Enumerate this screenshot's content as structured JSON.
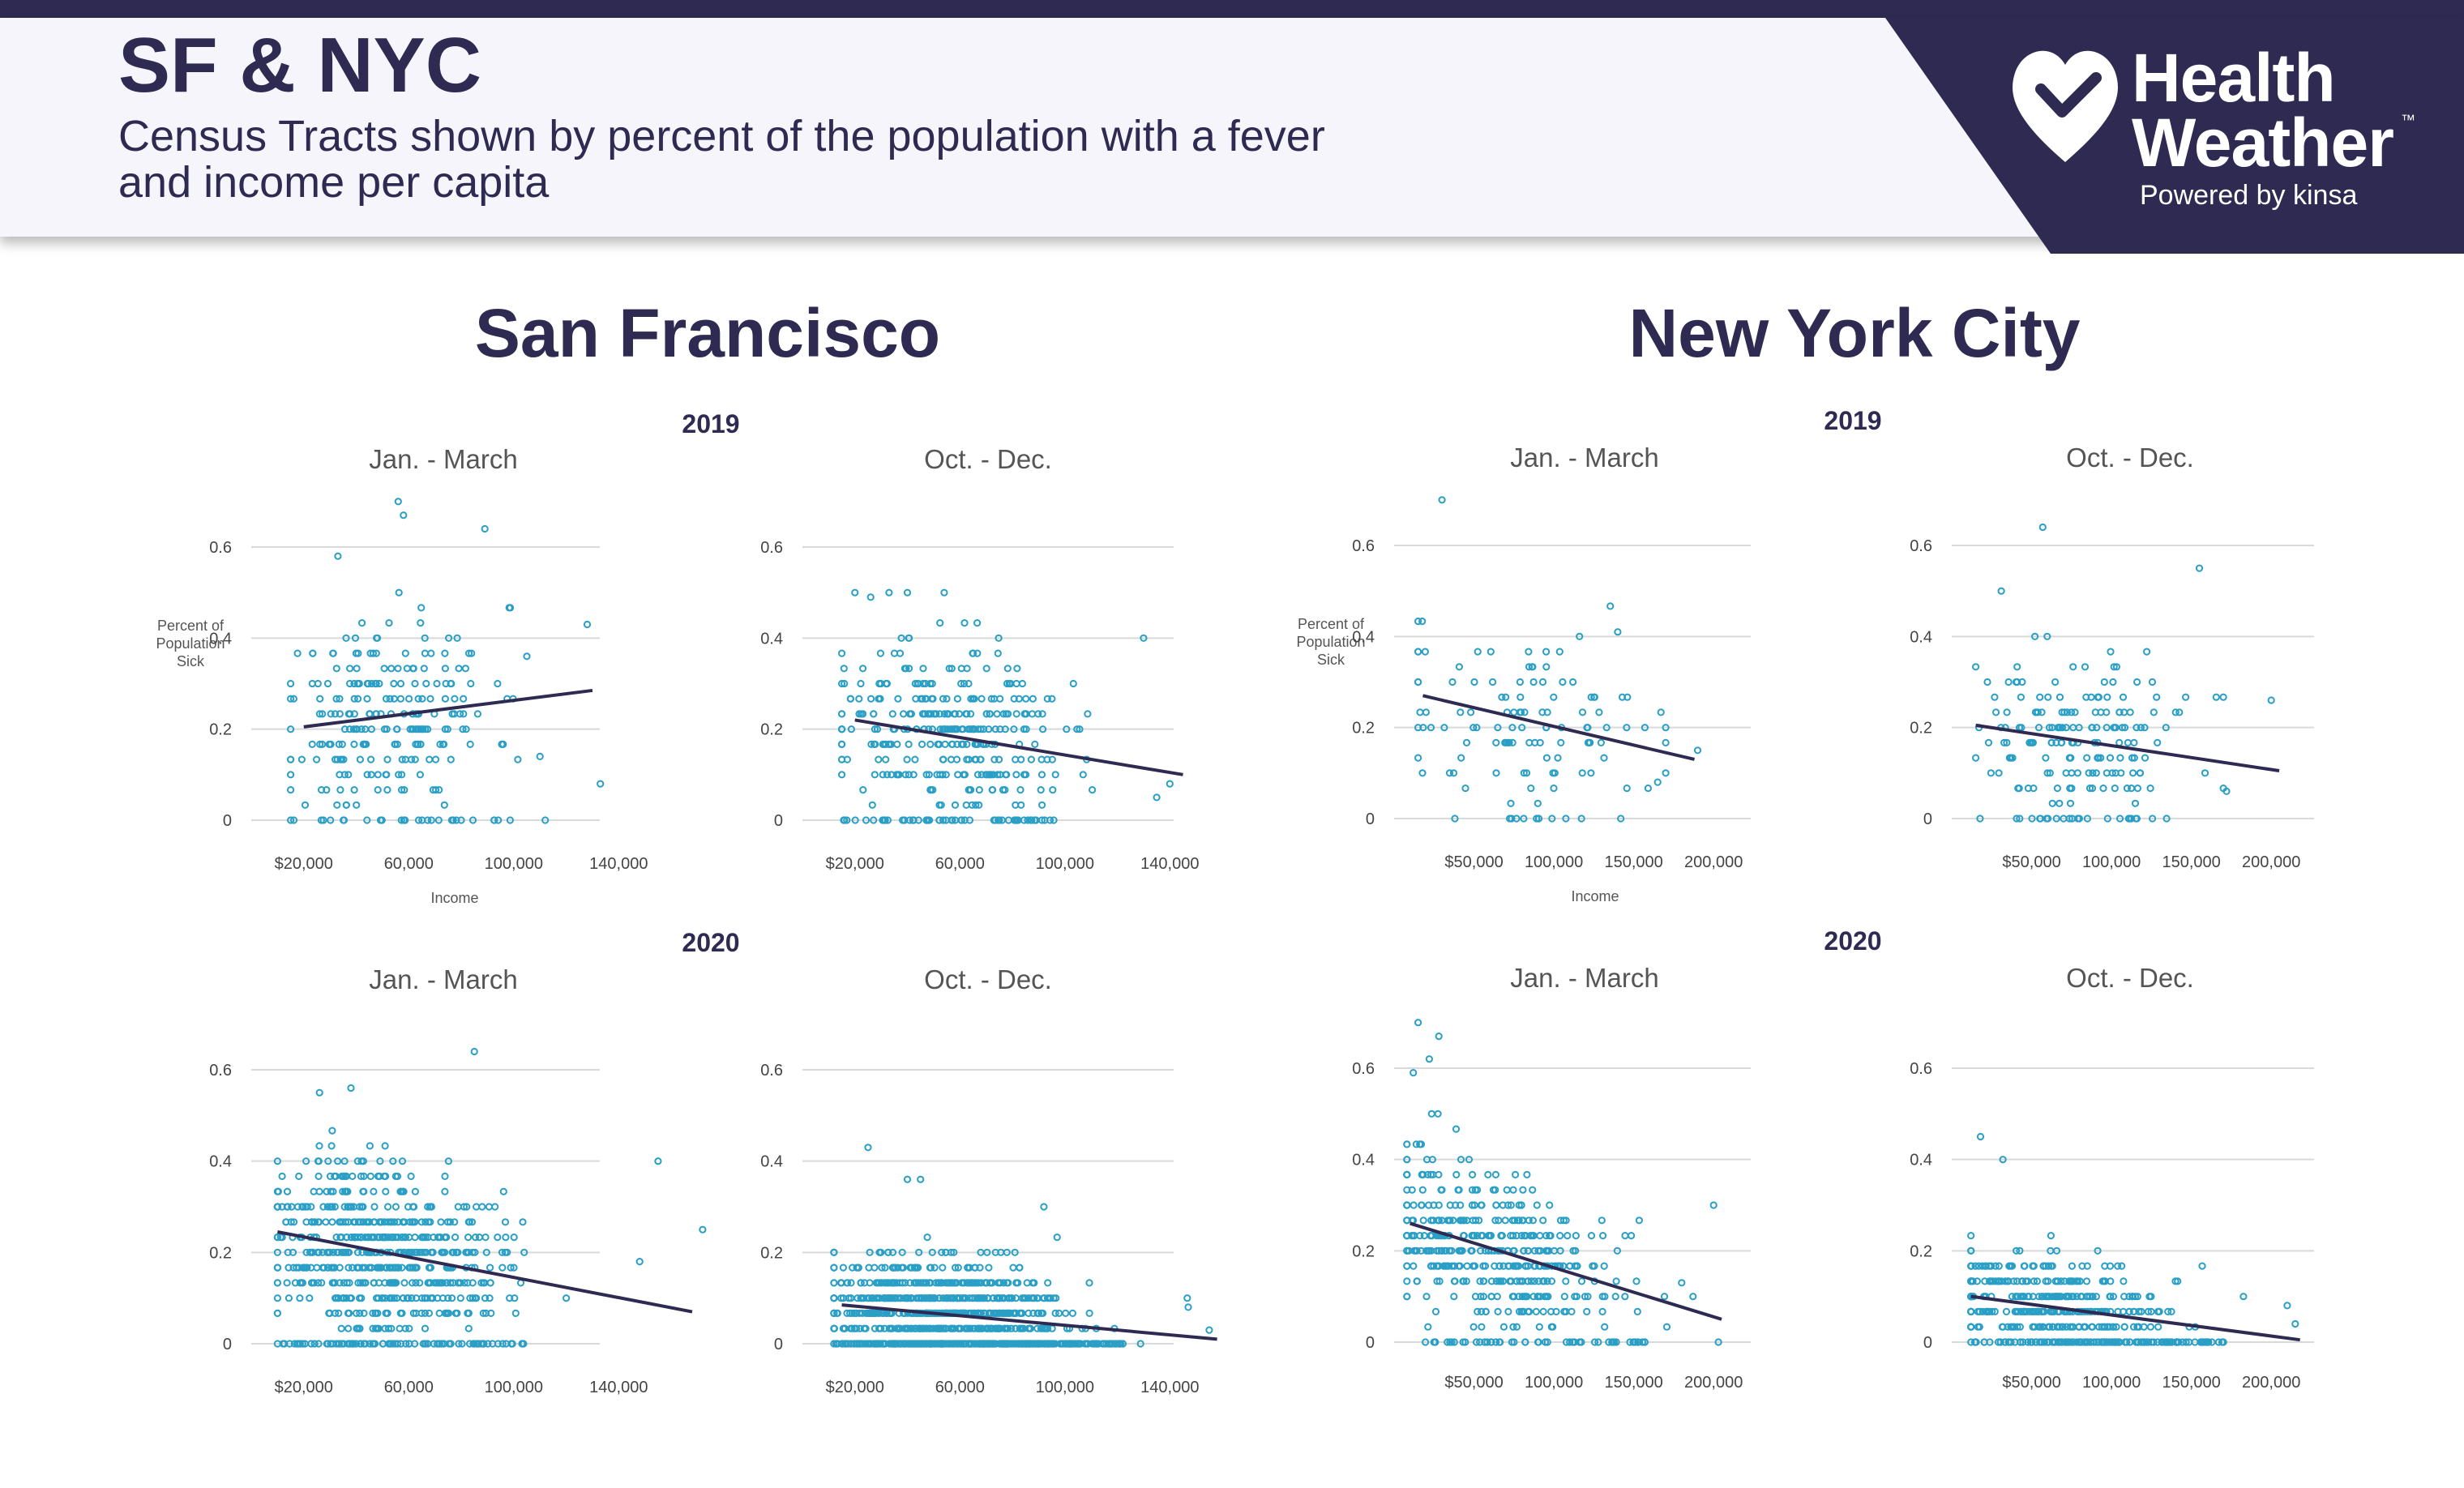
{
  "header": {
    "title": "SF & NYC",
    "subtitle_line1": "Census Tracts shown by percent of the population with a fever",
    "subtitle_line2": "and income per capita"
  },
  "logo": {
    "word1": "Health",
    "word2": "Weather",
    "trademark": "™",
    "powered": "Powered by kinsa",
    "icon": "heart-check-icon"
  },
  "colors": {
    "header_dark": "#2e2a52",
    "dot": "#2a9fc6",
    "trend": "#2e2a52"
  },
  "chart_data": [
    {
      "type": "scatter",
      "city": "San Francisco",
      "year": "2019",
      "period": "Jan. - March",
      "ylabel": "Percent of Population Sick",
      "xlabel": "Income",
      "xlim": [
        0,
        160000
      ],
      "ylim": [
        0,
        0.6
      ],
      "yticks": [
        0,
        0.2,
        0.4,
        0.6
      ],
      "ytick_labels": [
        "0",
        "0.2",
        "0.4",
        "0.6"
      ],
      "xticks": [
        20000,
        60000,
        100000,
        140000
      ],
      "xtick_labels": [
        "$20,000",
        "60,000",
        "100,000",
        "140,000"
      ],
      "trend": {
        "x": [
          20000,
          130000
        ],
        "y": [
          0.205,
          0.285
        ]
      },
      "cloud": {
        "count": 230,
        "xmin": 15000,
        "xmax": 120000,
        "xmean": 52000,
        "xsd": 20000,
        "ysd": 0.11,
        "zeros": 22,
        "seed": 11
      },
      "outliers": [
        [
          56000,
          0.7
        ],
        [
          58000,
          0.67
        ],
        [
          89000,
          0.64
        ],
        [
          33000,
          0.58
        ],
        [
          128000,
          0.43
        ],
        [
          133000,
          0.08
        ],
        [
          110000,
          0.14
        ],
        [
          105000,
          0.36
        ],
        [
          112000,
          0.0
        ]
      ]
    },
    {
      "type": "scatter",
      "city": "San Francisco",
      "year": "2019",
      "period": "Oct. - Dec.",
      "xlim": [
        0,
        160000
      ],
      "ylim": [
        0,
        0.6
      ],
      "yticks": [
        0,
        0.2,
        0.4,
        0.6
      ],
      "ytick_labels": [
        "0",
        "0.2",
        "0.4",
        "0.6"
      ],
      "xticks": [
        20000,
        60000,
        100000,
        140000
      ],
      "xtick_labels": [
        "$20,000",
        "60,000",
        "100,000",
        "140,000"
      ],
      "trend": {
        "x": [
          20000,
          145000
        ],
        "y": [
          0.22,
          0.1
        ]
      },
      "cloud": {
        "count": 330,
        "xmin": 15000,
        "xmax": 130000,
        "xmean": 55000,
        "xsd": 22000,
        "ysd": 0.1,
        "zeros": 40,
        "seed": 23
      },
      "outliers": [
        [
          20000,
          0.5
        ],
        [
          26000,
          0.49
        ],
        [
          33000,
          0.5
        ],
        [
          40000,
          0.5
        ],
        [
          130000,
          0.4
        ],
        [
          140000,
          0.08
        ],
        [
          135000,
          0.05
        ]
      ]
    },
    {
      "type": "scatter",
      "city": "San Francisco",
      "year": "2020",
      "period": "Jan. - March",
      "xlim": [
        0,
        160000
      ],
      "ylim": [
        0,
        0.6
      ],
      "yticks": [
        0,
        0.2,
        0.4,
        0.6
      ],
      "ytick_labels": [
        "0",
        "0.2",
        "0.4",
        "0.6"
      ],
      "xticks": [
        20000,
        60000,
        100000,
        140000
      ],
      "xtick_labels": [
        "$20,000",
        "60,000",
        "100,000",
        "140,000"
      ],
      "trend": {
        "x": [
          10000,
          168000
        ],
        "y": [
          0.245,
          0.07
        ]
      },
      "cloud": {
        "count": 620,
        "xmin": 10000,
        "xmax": 130000,
        "xmean": 50000,
        "xsd": 22000,
        "ysd": 0.1,
        "zeros": 60,
        "seed": 37
      },
      "outliers": [
        [
          85000,
          0.64
        ],
        [
          38000,
          0.56
        ],
        [
          26000,
          0.55
        ],
        [
          155000,
          0.4
        ],
        [
          172000,
          0.25
        ],
        [
          120000,
          0.1
        ],
        [
          148000,
          0.18
        ]
      ]
    },
    {
      "type": "scatter",
      "city": "San Francisco",
      "year": "2020",
      "period": "Oct. - Dec.",
      "xlim": [
        0,
        160000
      ],
      "ylim": [
        0,
        0.6
      ],
      "yticks": [
        0,
        0.2,
        0.4,
        0.6
      ],
      "ytick_labels": [
        "0",
        "0.2",
        "0.4",
        "0.6"
      ],
      "xticks": [
        20000,
        60000,
        100000,
        140000
      ],
      "xtick_labels": [
        "$20,000",
        "60,000",
        "100,000",
        "140,000"
      ],
      "trend": {
        "x": [
          15000,
          158000
        ],
        "y": [
          0.085,
          0.01
        ]
      },
      "cloud": {
        "count": 850,
        "xmin": 12000,
        "xmax": 150000,
        "xmean": 55000,
        "xsd": 24000,
        "ysd": 0.06,
        "zeros": 160,
        "seed": 51
      },
      "outliers": [
        [
          25000,
          0.43
        ],
        [
          40000,
          0.36
        ],
        [
          45000,
          0.36
        ],
        [
          92000,
          0.3
        ],
        [
          147000,
          0.08
        ],
        [
          155000,
          0.03
        ]
      ]
    },
    {
      "type": "scatter",
      "city": "New York City",
      "year": "2019",
      "period": "Jan. - March",
      "ylabel": "Percent of Population Sick",
      "xlabel": "Income",
      "xlim": [
        0,
        225000
      ],
      "ylim": [
        0,
        0.6
      ],
      "yticks": [
        0,
        0.2,
        0.4,
        0.6
      ],
      "ytick_labels": [
        "0",
        "0.2",
        "0.4",
        "0.6"
      ],
      "xticks": [
        50000,
        100000,
        150000,
        200000
      ],
      "xtick_labels": [
        "$50,000",
        "100,000",
        "150,000",
        "200,000"
      ],
      "trend": {
        "x": [
          18000,
          188000
        ],
        "y": [
          0.27,
          0.13
        ]
      },
      "cloud": {
        "count": 110,
        "xmin": 15000,
        "xmax": 170000,
        "xmean": 80000,
        "xsd": 40000,
        "ysd": 0.1,
        "zeros": 10,
        "seed": 63
      },
      "outliers": [
        [
          30000,
          0.7
        ],
        [
          190000,
          0.15
        ],
        [
          165000,
          0.08
        ],
        [
          140000,
          0.41
        ]
      ]
    },
    {
      "type": "scatter",
      "city": "New York City",
      "year": "2019",
      "period": "Oct. - Dec.",
      "xlim": [
        0,
        225000
      ],
      "ylim": [
        0,
        0.6
      ],
      "yticks": [
        0,
        0.2,
        0.4,
        0.6
      ],
      "ytick_labels": [
        "0",
        "0.2",
        "0.4",
        "0.6"
      ],
      "xticks": [
        50000,
        100000,
        150000,
        200000
      ],
      "xtick_labels": [
        "$50,000",
        "100,000",
        "150,000",
        "200,000"
      ],
      "trend": {
        "x": [
          15000,
          205000
        ],
        "y": [
          0.205,
          0.105
        ]
      },
      "cloud": {
        "count": 170,
        "xmin": 15000,
        "xmax": 170000,
        "xmean": 80000,
        "xsd": 38000,
        "ysd": 0.09,
        "zeros": 18,
        "seed": 77
      },
      "outliers": [
        [
          57000,
          0.64
        ],
        [
          31000,
          0.5
        ],
        [
          155000,
          0.55
        ],
        [
          200000,
          0.26
        ],
        [
          172000,
          0.06
        ]
      ]
    },
    {
      "type": "scatter",
      "city": "New York City",
      "year": "2020",
      "period": "Jan. - March",
      "xlim": [
        0,
        225000
      ],
      "ylim": [
        0,
        0.6
      ],
      "yticks": [
        0,
        0.2,
        0.4,
        0.6
      ],
      "ytick_labels": [
        "0",
        "0.2",
        "0.4",
        "0.6"
      ],
      "xticks": [
        50000,
        100000,
        150000,
        200000
      ],
      "xtick_labels": [
        "$50,000",
        "100,000",
        "150,000",
        "200,000"
      ],
      "trend": {
        "x": [
          10000,
          205000
        ],
        "y": [
          0.26,
          0.05
        ]
      },
      "cloud": {
        "count": 420,
        "xmin": 8000,
        "xmax": 200000,
        "xmean": 60000,
        "xsd": 40000,
        "ysd": 0.09,
        "zeros": 40,
        "seed": 89
      },
      "outliers": [
        [
          15000,
          0.7
        ],
        [
          28000,
          0.67
        ],
        [
          22000,
          0.62
        ],
        [
          12000,
          0.59
        ],
        [
          200000,
          0.3
        ],
        [
          203000,
          0.0
        ],
        [
          180000,
          0.13
        ]
      ]
    },
    {
      "type": "scatter",
      "city": "New York City",
      "year": "2020",
      "period": "Oct. - Dec.",
      "xlim": [
        0,
        225000
      ],
      "ylim": [
        0,
        0.6
      ],
      "yticks": [
        0,
        0.2,
        0.4,
        0.6
      ],
      "ytick_labels": [
        "0",
        "0.2",
        "0.4",
        "0.6"
      ],
      "xticks": [
        50000,
        100000,
        150000,
        200000
      ],
      "xtick_labels": [
        "$50,000",
        "100,000",
        "150,000",
        "200,000"
      ],
      "trend": {
        "x": [
          12000,
          218000
        ],
        "y": [
          0.1,
          0.005
        ]
      },
      "cloud": {
        "count": 380,
        "xmin": 12000,
        "xmax": 210000,
        "xmean": 60000,
        "xsd": 40000,
        "ysd": 0.06,
        "zeros": 90,
        "seed": 97
      },
      "outliers": [
        [
          18000,
          0.45
        ],
        [
          32000,
          0.4
        ],
        [
          210000,
          0.08
        ],
        [
          215000,
          0.04
        ]
      ]
    }
  ],
  "figure": {
    "cities": [
      "San Francisco",
      "New York City"
    ],
    "years": [
      "2019",
      "2020"
    ],
    "periods": [
      "Jan. - March",
      "Oct. - Dec."
    ],
    "ylabel_lines": [
      "Percent of",
      "Population",
      "Sick"
    ],
    "xlabel": "Income"
  }
}
